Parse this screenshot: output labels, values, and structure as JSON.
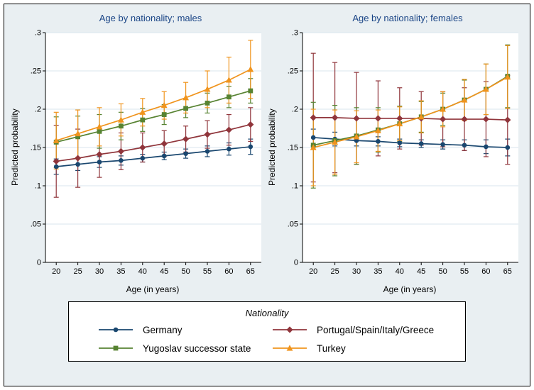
{
  "figure": {
    "background": "#e9eff2",
    "plot_background": "#ffffff",
    "grid_color": "#d9e6ec",
    "title_color": "#1a4586",
    "border_color": "#000000"
  },
  "legend": {
    "title": "Nationality",
    "position": "bottom",
    "items": [
      {
        "label": "Germany",
        "color": "#1a476f",
        "marker": "circle"
      },
      {
        "label": "Portugal/Spain/Italy/Greece",
        "color": "#90353b",
        "marker": "diamond"
      },
      {
        "label": "Yugoslav successor state",
        "color": "#578332",
        "marker": "square"
      },
      {
        "label": "Turkey",
        "color": "#f0941d",
        "marker": "triangle"
      }
    ]
  },
  "chart_data": [
    {
      "type": "line",
      "title": "Age by nationality; males",
      "xlabel": "Age (in years)",
      "ylabel": "Predicted probability",
      "x": [
        20,
        25,
        30,
        35,
        40,
        45,
        50,
        55,
        60,
        65
      ],
      "xlim": [
        17.5,
        67.5
      ],
      "ylim": [
        0,
        0.3
      ],
      "yticks": [
        0,
        0.05,
        0.1,
        0.15,
        0.2,
        0.25,
        0.3
      ],
      "ytick_labels": [
        "0",
        ".05",
        ".1",
        ".15",
        ".2",
        ".25",
        ".3"
      ],
      "grid": true,
      "error_bars": true,
      "series": [
        {
          "name": "Germany",
          "marker": "circle",
          "color": "#1a476f",
          "values": [
            0.125,
            0.128,
            0.131,
            0.133,
            0.136,
            0.139,
            0.142,
            0.145,
            0.148,
            0.151
          ],
          "ci": [
            0.01,
            0.008,
            0.007,
            0.006,
            0.005,
            0.005,
            0.006,
            0.007,
            0.008,
            0.01
          ]
        },
        {
          "name": "Portugal/Spain/Italy/Greece",
          "marker": "diamond",
          "color": "#90353b",
          "values": [
            0.132,
            0.136,
            0.141,
            0.145,
            0.15,
            0.155,
            0.161,
            0.167,
            0.173,
            0.18
          ],
          "ci": [
            0.047,
            0.038,
            0.03,
            0.024,
            0.019,
            0.017,
            0.017,
            0.018,
            0.02,
            0.022
          ]
        },
        {
          "name": "Yugoslav successor state",
          "marker": "square",
          "color": "#578332",
          "values": [
            0.157,
            0.164,
            0.171,
            0.178,
            0.186,
            0.193,
            0.201,
            0.208,
            0.216,
            0.224
          ],
          "ci": [
            0.033,
            0.027,
            0.022,
            0.018,
            0.015,
            0.013,
            0.012,
            0.013,
            0.014,
            0.016
          ]
        },
        {
          "name": "Turkey",
          "marker": "triangle",
          "color": "#f0941d",
          "values": [
            0.159,
            0.168,
            0.177,
            0.186,
            0.196,
            0.205,
            0.215,
            0.226,
            0.238,
            0.252
          ],
          "ci": [
            0.037,
            0.031,
            0.025,
            0.021,
            0.018,
            0.018,
            0.02,
            0.024,
            0.03,
            0.038
          ]
        }
      ]
    },
    {
      "type": "line",
      "title": "Age by nationality; females",
      "xlabel": "Age (in years)",
      "ylabel": "Predicted probability",
      "x": [
        20,
        25,
        30,
        35,
        40,
        45,
        50,
        55,
        60,
        65
      ],
      "xlim": [
        17.5,
        67.5
      ],
      "ylim": [
        0,
        0.3
      ],
      "yticks": [
        0,
        0.05,
        0.1,
        0.15,
        0.2,
        0.25,
        0.3
      ],
      "ytick_labels": [
        "0",
        ".05",
        ".1",
        ".15",
        ".2",
        ".25",
        ".3"
      ],
      "grid": true,
      "error_bars": true,
      "series": [
        {
          "name": "Germany",
          "marker": "circle",
          "color": "#1a476f",
          "values": [
            0.163,
            0.161,
            0.159,
            0.158,
            0.156,
            0.155,
            0.154,
            0.153,
            0.151,
            0.15
          ],
          "ci": [
            0.011,
            0.009,
            0.007,
            0.006,
            0.005,
            0.005,
            0.006,
            0.007,
            0.009,
            0.011
          ]
        },
        {
          "name": "Portugal/Spain/Italy/Greece",
          "marker": "diamond",
          "color": "#90353b",
          "values": [
            0.189,
            0.189,
            0.188,
            0.188,
            0.188,
            0.188,
            0.187,
            0.187,
            0.187,
            0.186
          ],
          "ci": [
            0.084,
            0.072,
            0.06,
            0.049,
            0.04,
            0.035,
            0.036,
            0.041,
            0.049,
            0.058
          ]
        },
        {
          "name": "Yugoslav successor state",
          "marker": "square",
          "color": "#578332",
          "values": [
            0.153,
            0.159,
            0.165,
            0.173,
            0.181,
            0.19,
            0.2,
            0.212,
            0.226,
            0.243
          ],
          "ci": [
            0.056,
            0.046,
            0.037,
            0.029,
            0.023,
            0.02,
            0.021,
            0.026,
            0.033,
            0.041
          ]
        },
        {
          "name": "Turkey",
          "marker": "triangle",
          "color": "#f0941d",
          "values": [
            0.15,
            0.157,
            0.164,
            0.172,
            0.181,
            0.19,
            0.2,
            0.212,
            0.226,
            0.242
          ],
          "ci": [
            0.05,
            0.042,
            0.034,
            0.027,
            0.022,
            0.021,
            0.023,
            0.027,
            0.033,
            0.041
          ]
        }
      ]
    }
  ]
}
